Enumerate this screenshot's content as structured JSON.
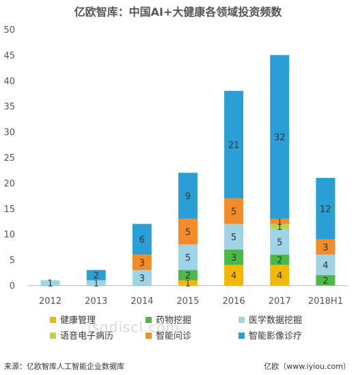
{
  "title": "亿欧智库：中国AI+大健康各领域投资频数",
  "source": "来源：亿欧智库人工智能企业数据库",
  "brand": "亿欧（www.iyiou.com）",
  "watermark": "jsqdiscl.com",
  "chart_data": {
    "type": "bar",
    "stacked": true,
    "title": "亿欧智库：中国AI+大健康各领域投资频数",
    "categories": [
      "2012",
      "2013",
      "2014",
      "2015",
      "2016",
      "2017",
      "2018H1"
    ],
    "ylim": [
      0,
      50
    ],
    "yticks": [
      0,
      5,
      10,
      15,
      20,
      25,
      30,
      35,
      40,
      45,
      50
    ],
    "legend_position": "bottom",
    "grid": false,
    "series": [
      {
        "name": "健康管理",
        "color": "#F5B800",
        "values": [
          0,
          0,
          0,
          1,
          4,
          4,
          0
        ]
      },
      {
        "name": "药物挖掘",
        "color": "#4CB847",
        "values": [
          0,
          0,
          0,
          2,
          3,
          2,
          2
        ]
      },
      {
        "name": "医学数据挖掘",
        "color": "#9FD3E6",
        "values": [
          1,
          1,
          3,
          5,
          5,
          5,
          4
        ]
      },
      {
        "name": "语音电子病历",
        "color": "#B4D455",
        "values": [
          0,
          0,
          0,
          0,
          0,
          1,
          0
        ]
      },
      {
        "name": "智能问诊",
        "color": "#F28C28",
        "values": [
          0,
          0,
          3,
          5,
          5,
          1,
          3
        ]
      },
      {
        "name": "智能影像诊疗",
        "color": "#2A9FD6",
        "values": [
          0,
          2,
          6,
          9,
          21,
          32,
          12
        ]
      }
    ]
  }
}
